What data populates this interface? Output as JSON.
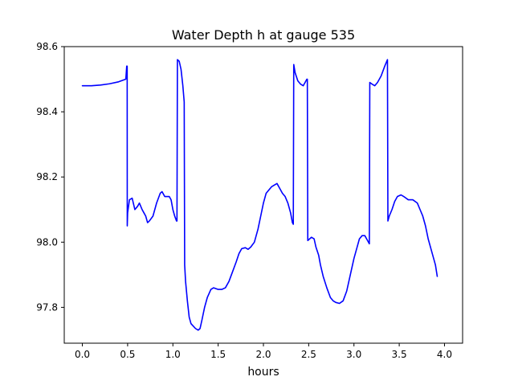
{
  "chart_data": {
    "type": "line",
    "title": "Water Depth h at gauge 535",
    "xlabel": "hours",
    "ylabel": "",
    "xlim": [
      -0.2,
      4.2
    ],
    "ylim": [
      97.69,
      98.6
    ],
    "grid": false,
    "x_ticks": [
      0.0,
      0.5,
      1.0,
      1.5,
      2.0,
      2.5,
      3.0,
      3.5,
      4.0
    ],
    "x_tick_labels": [
      "0.0",
      "0.5",
      "1.0",
      "1.5",
      "2.0",
      "2.5",
      "3.0",
      "3.5",
      "4.0"
    ],
    "y_ticks": [
      97.8,
      98.0,
      98.2,
      98.4,
      98.6
    ],
    "y_tick_labels": [
      "97.8",
      "98.0",
      "98.2",
      "98.4",
      "98.6"
    ],
    "series": [
      {
        "name": "",
        "color": "#0000ff",
        "points": [
          [
            0.0,
            98.48
          ],
          [
            0.1,
            98.48
          ],
          [
            0.2,
            98.482
          ],
          [
            0.3,
            98.486
          ],
          [
            0.4,
            98.492
          ],
          [
            0.48,
            98.5
          ],
          [
            0.49,
            98.54
          ],
          [
            0.495,
            98.54
          ],
          [
            0.496,
            98.05
          ],
          [
            0.5,
            98.09
          ],
          [
            0.52,
            98.13
          ],
          [
            0.55,
            98.135
          ],
          [
            0.58,
            98.1
          ],
          [
            0.61,
            98.11
          ],
          [
            0.63,
            98.12
          ],
          [
            0.66,
            98.1
          ],
          [
            0.68,
            98.09
          ],
          [
            0.7,
            98.08
          ],
          [
            0.72,
            98.06
          ],
          [
            0.74,
            98.065
          ],
          [
            0.78,
            98.08
          ],
          [
            0.82,
            98.12
          ],
          [
            0.86,
            98.15
          ],
          [
            0.88,
            98.155
          ],
          [
            0.91,
            98.14
          ],
          [
            0.96,
            98.14
          ],
          [
            0.98,
            98.13
          ],
          [
            1.0,
            98.1
          ],
          [
            1.02,
            98.08
          ],
          [
            1.04,
            98.065
          ],
          [
            1.045,
            98.065
          ],
          [
            1.05,
            98.56
          ],
          [
            1.07,
            98.555
          ],
          [
            1.09,
            98.53
          ],
          [
            1.11,
            98.48
          ],
          [
            1.125,
            98.43
          ],
          [
            1.13,
            97.93
          ],
          [
            1.14,
            97.88
          ],
          [
            1.16,
            97.82
          ],
          [
            1.18,
            97.77
          ],
          [
            1.2,
            97.75
          ],
          [
            1.25,
            97.735
          ],
          [
            1.28,
            97.73
          ],
          [
            1.3,
            97.735
          ],
          [
            1.32,
            97.76
          ],
          [
            1.35,
            97.8
          ],
          [
            1.38,
            97.83
          ],
          [
            1.42,
            97.855
          ],
          [
            1.45,
            97.86
          ],
          [
            1.5,
            97.855
          ],
          [
            1.54,
            97.855
          ],
          [
            1.58,
            97.86
          ],
          [
            1.62,
            97.88
          ],
          [
            1.66,
            97.91
          ],
          [
            1.7,
            97.94
          ],
          [
            1.73,
            97.965
          ],
          [
            1.76,
            97.98
          ],
          [
            1.8,
            97.983
          ],
          [
            1.83,
            97.978
          ],
          [
            1.86,
            97.985
          ],
          [
            1.9,
            98.0
          ],
          [
            1.94,
            98.04
          ],
          [
            1.97,
            98.08
          ],
          [
            2.0,
            98.12
          ],
          [
            2.03,
            98.15
          ],
          [
            2.06,
            98.16
          ],
          [
            2.09,
            98.17
          ],
          [
            2.12,
            98.175
          ],
          [
            2.15,
            98.18
          ],
          [
            2.18,
            98.165
          ],
          [
            2.21,
            98.15
          ],
          [
            2.24,
            98.14
          ],
          [
            2.27,
            98.12
          ],
          [
            2.3,
            98.09
          ],
          [
            2.32,
            98.06
          ],
          [
            2.33,
            98.055
          ],
          [
            2.335,
            98.545
          ],
          [
            2.35,
            98.52
          ],
          [
            2.38,
            98.495
          ],
          [
            2.41,
            98.485
          ],
          [
            2.44,
            98.48
          ],
          [
            2.46,
            98.49
          ],
          [
            2.48,
            98.5
          ],
          [
            2.485,
            98.5
          ],
          [
            2.49,
            98.005
          ],
          [
            2.51,
            98.01
          ],
          [
            2.53,
            98.015
          ],
          [
            2.56,
            98.01
          ],
          [
            2.58,
            97.985
          ],
          [
            2.61,
            97.96
          ],
          [
            2.63,
            97.93
          ],
          [
            2.66,
            97.895
          ],
          [
            2.7,
            97.86
          ],
          [
            2.74,
            97.83
          ],
          [
            2.77,
            97.82
          ],
          [
            2.8,
            97.815
          ],
          [
            2.84,
            97.812
          ],
          [
            2.88,
            97.82
          ],
          [
            2.92,
            97.85
          ],
          [
            2.96,
            97.9
          ],
          [
            3.0,
            97.95
          ],
          [
            3.03,
            97.98
          ],
          [
            3.06,
            98.01
          ],
          [
            3.09,
            98.02
          ],
          [
            3.12,
            98.02
          ],
          [
            3.15,
            98.005
          ],
          [
            3.17,
            97.995
          ],
          [
            3.175,
            98.49
          ],
          [
            3.2,
            98.485
          ],
          [
            3.23,
            98.48
          ],
          [
            3.26,
            98.49
          ],
          [
            3.3,
            98.51
          ],
          [
            3.34,
            98.54
          ],
          [
            3.37,
            98.56
          ],
          [
            3.375,
            98.065
          ],
          [
            3.39,
            98.08
          ],
          [
            3.42,
            98.1
          ],
          [
            3.45,
            98.125
          ],
          [
            3.48,
            98.14
          ],
          [
            3.52,
            98.145
          ],
          [
            3.55,
            98.14
          ],
          [
            3.6,
            98.13
          ],
          [
            3.65,
            98.13
          ],
          [
            3.7,
            98.12
          ],
          [
            3.73,
            98.1
          ],
          [
            3.76,
            98.08
          ],
          [
            3.79,
            98.05
          ],
          [
            3.82,
            98.01
          ],
          [
            3.85,
            97.98
          ],
          [
            3.88,
            97.95
          ],
          [
            3.9,
            97.93
          ],
          [
            3.92,
            97.895
          ]
        ]
      }
    ]
  }
}
